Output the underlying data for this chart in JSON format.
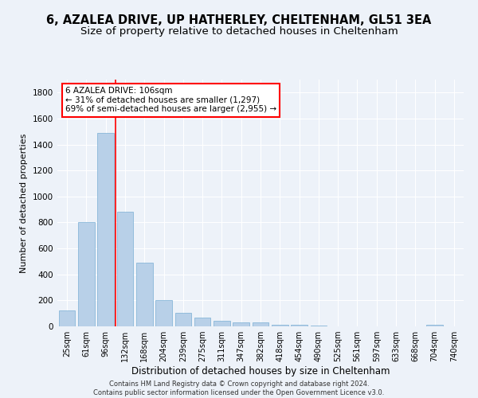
{
  "title1": "6, AZALEA DRIVE, UP HATHERLEY, CHELTENHAM, GL51 3EA",
  "title2": "Size of property relative to detached houses in Cheltenham",
  "xlabel": "Distribution of detached houses by size in Cheltenham",
  "ylabel": "Number of detached properties",
  "categories": [
    "25sqm",
    "61sqm",
    "96sqm",
    "132sqm",
    "168sqm",
    "204sqm",
    "239sqm",
    "275sqm",
    "311sqm",
    "347sqm",
    "382sqm",
    "418sqm",
    "454sqm",
    "490sqm",
    "525sqm",
    "561sqm",
    "597sqm",
    "633sqm",
    "668sqm",
    "704sqm",
    "740sqm"
  ],
  "values": [
    125,
    800,
    1490,
    880,
    490,
    205,
    103,
    65,
    45,
    32,
    28,
    15,
    10,
    5,
    3,
    2,
    1,
    1,
    1,
    10,
    1
  ],
  "bar_color": "#b8d0e8",
  "bar_edge_color": "#7aafd4",
  "annotation_text": "6 AZALEA DRIVE: 106sqm\n← 31% of detached houses are smaller (1,297)\n69% of semi-detached houses are larger (2,955) →",
  "annotation_box_color": "white",
  "annotation_box_edge_color": "red",
  "vline_color": "red",
  "vline_x_index": 2.5,
  "ylim": [
    0,
    1900
  ],
  "yticks": [
    0,
    200,
    400,
    600,
    800,
    1000,
    1200,
    1400,
    1600,
    1800
  ],
  "footer": "Contains HM Land Registry data © Crown copyright and database right 2024.\nContains public sector information licensed under the Open Government Licence v3.0.",
  "background_color": "#edf2f9",
  "grid_color": "#ffffff",
  "title1_fontsize": 10.5,
  "title2_fontsize": 9.5,
  "xlabel_fontsize": 8.5,
  "ylabel_fontsize": 8,
  "tick_fontsize": 7,
  "annotation_fontsize": 7.5,
  "footer_fontsize": 6
}
